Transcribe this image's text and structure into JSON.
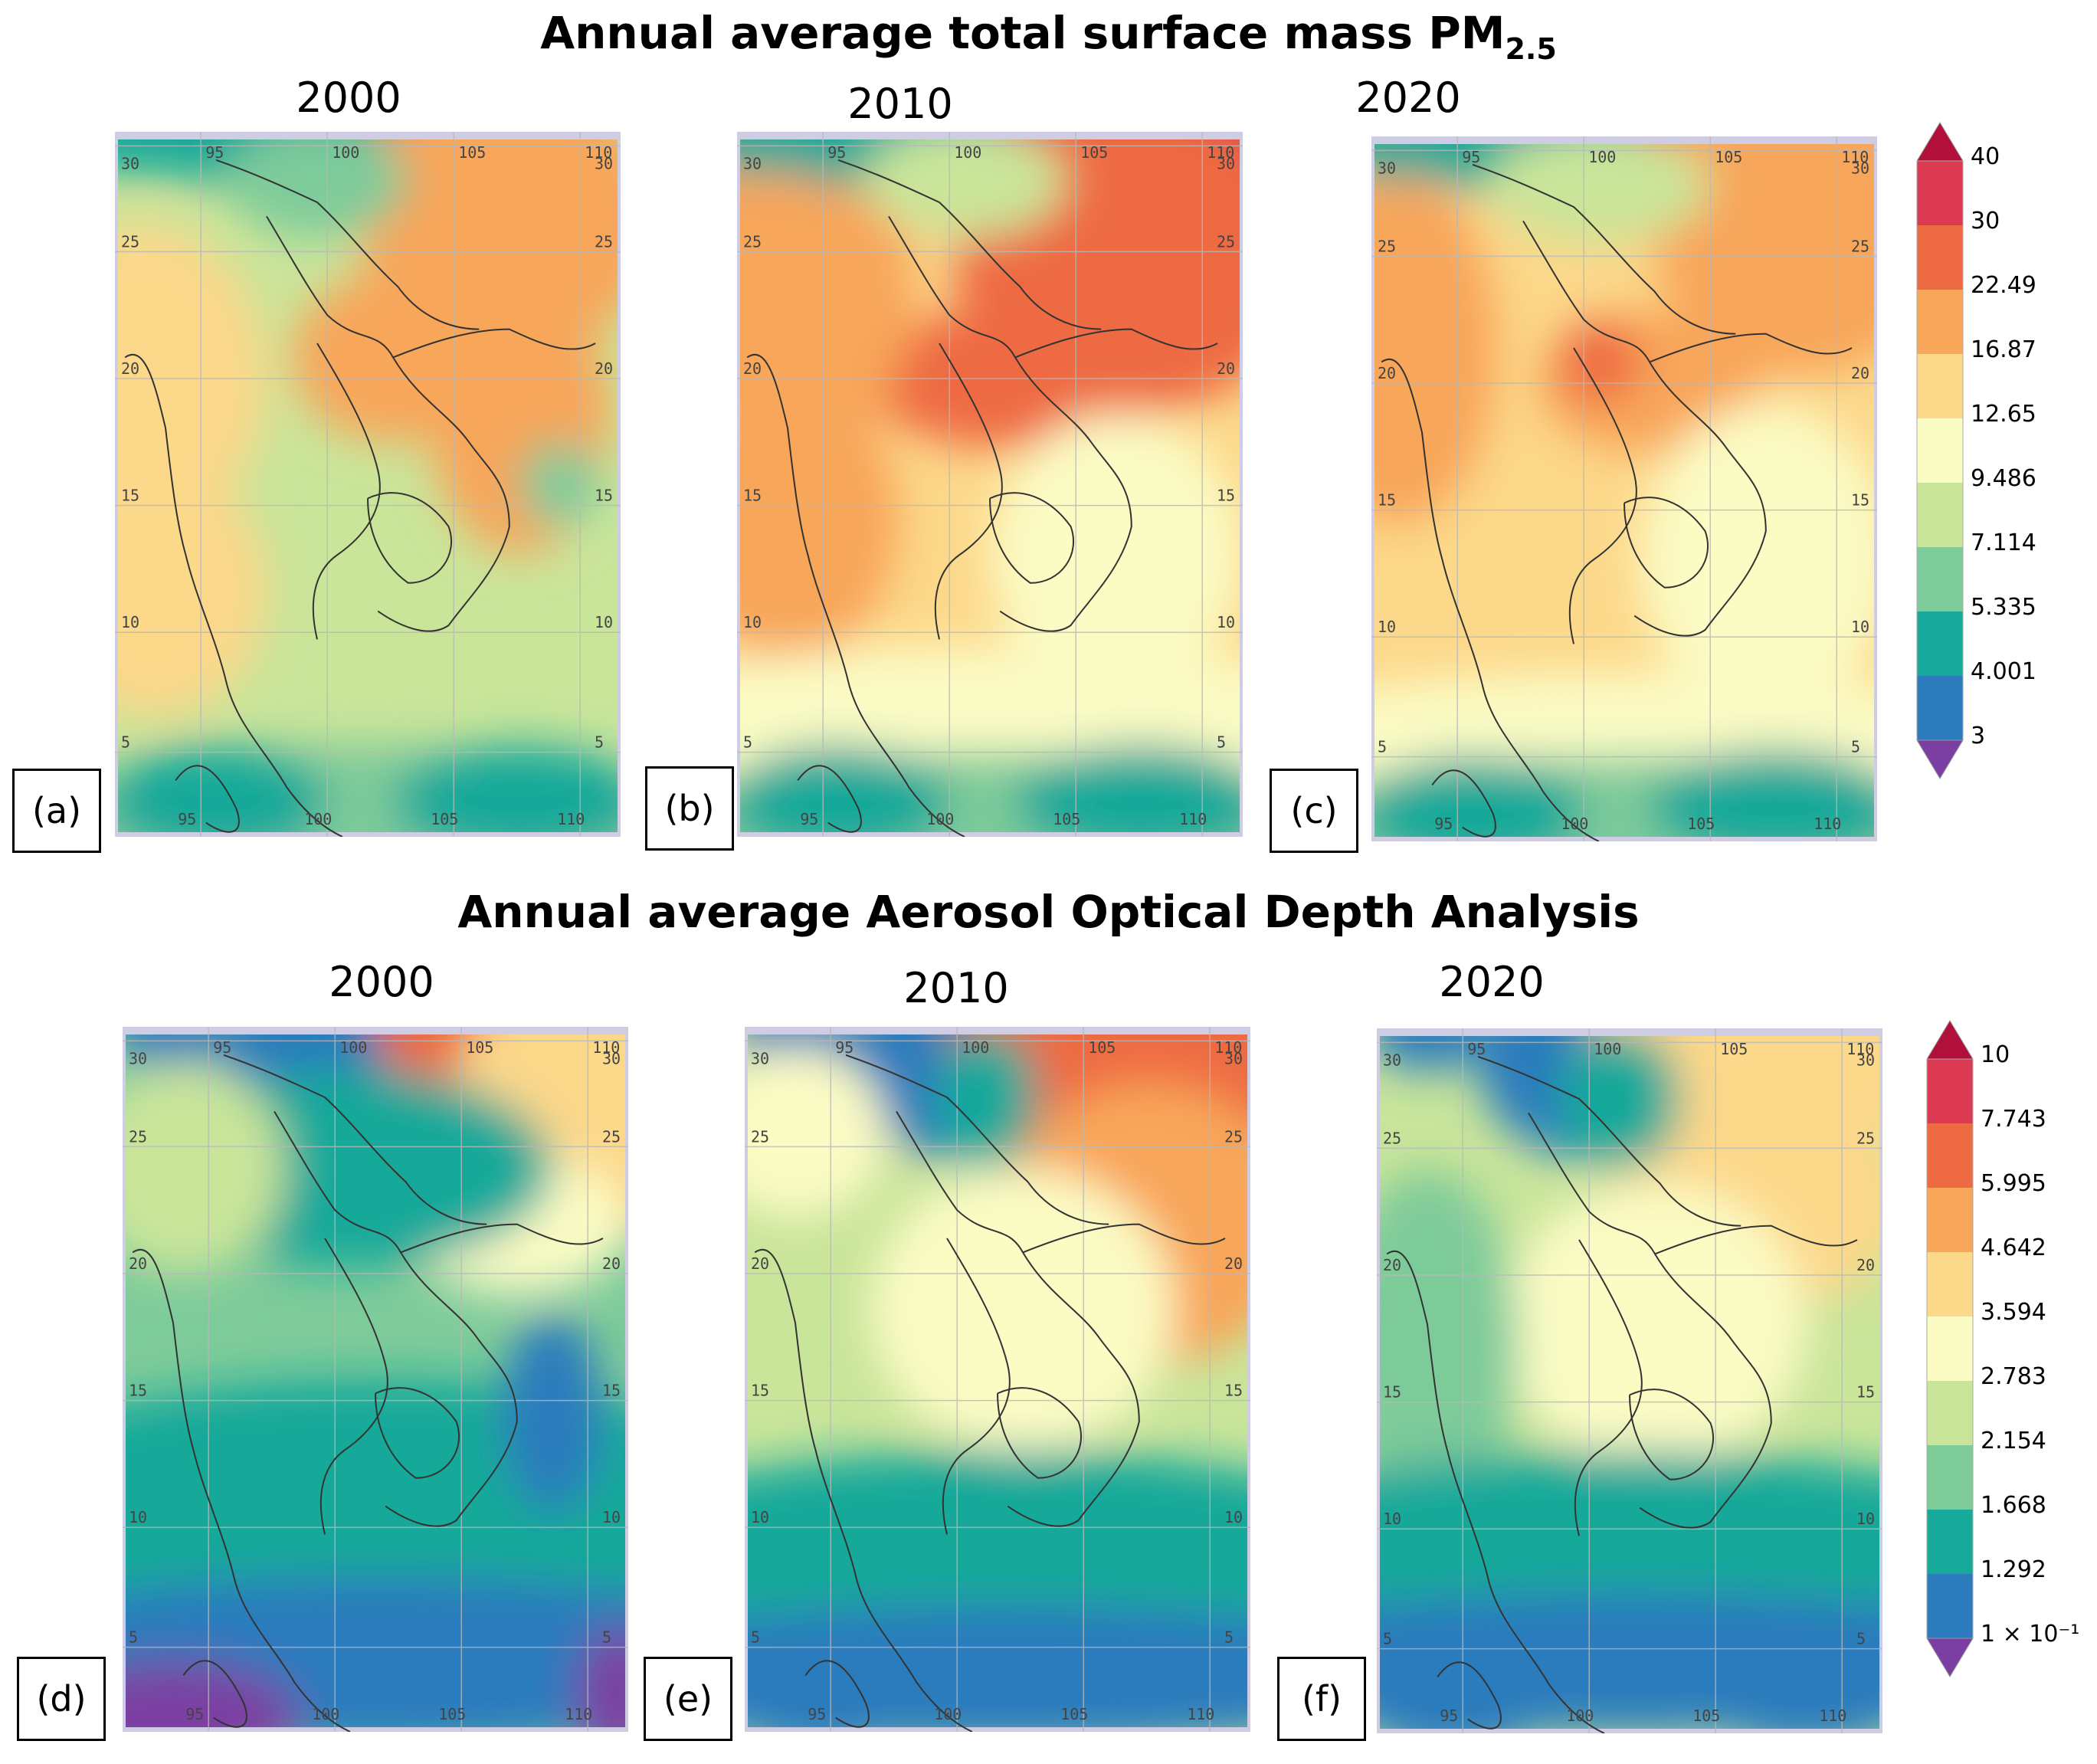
{
  "pm25": {
    "title": "Annual average total surface mass PM",
    "title_sub": "2.5",
    "colorbar_labels": [
      "40",
      "30",
      "22.49",
      "16.87",
      "12.65",
      "9.486",
      "7.114",
      "5.335",
      "4.001",
      "3"
    ],
    "colors": [
      "#7b3fa3",
      "#2b7bbd",
      "#17a99a",
      "#7ecb9a",
      "#c9e59a",
      "#fbfbc4",
      "#fcd88a",
      "#f8a65a",
      "#ee6a43",
      "#dc3a52",
      "#b0103a"
    ],
    "panels": [
      {
        "year": "2000",
        "label": "(a)",
        "bg": 4,
        "blobs": [
          [
            0.68,
            0.0,
            0.28,
            0.12,
            8
          ],
          [
            0.78,
            0.12,
            0.3,
            0.2,
            7
          ],
          [
            0.55,
            0.32,
            0.2,
            0.12,
            7
          ],
          [
            0.8,
            0.4,
            0.18,
            0.2,
            7
          ],
          [
            0.05,
            0.35,
            0.25,
            0.22,
            6
          ],
          [
            0.08,
            0.65,
            0.22,
            0.18,
            6
          ],
          [
            0.28,
            0.0,
            0.25,
            0.08,
            2
          ],
          [
            0.05,
            0.0,
            0.18,
            0.06,
            2
          ],
          [
            0.4,
            0.07,
            0.18,
            0.08,
            3
          ],
          [
            0.5,
            0.97,
            0.7,
            0.1,
            3
          ],
          [
            0.2,
            0.95,
            0.22,
            0.08,
            2
          ],
          [
            0.8,
            0.95,
            0.25,
            0.08,
            2
          ],
          [
            0.88,
            0.5,
            0.08,
            0.06,
            3
          ]
        ]
      },
      {
        "year": "2010",
        "label": "(b)",
        "bg": 6,
        "blobs": [
          [
            0.7,
            0.0,
            0.3,
            0.12,
            9
          ],
          [
            0.95,
            0.05,
            0.2,
            0.15,
            9
          ],
          [
            0.78,
            0.18,
            0.35,
            0.22,
            8
          ],
          [
            0.55,
            0.35,
            0.3,
            0.1,
            8
          ],
          [
            0.1,
            0.22,
            0.25,
            0.25,
            7
          ],
          [
            0.1,
            0.55,
            0.22,
            0.2,
            7
          ],
          [
            0.75,
            0.6,
            0.25,
            0.2,
            5
          ],
          [
            0.5,
            0.85,
            0.9,
            0.12,
            5
          ],
          [
            0.28,
            0.0,
            0.25,
            0.08,
            2
          ],
          [
            0.05,
            0.0,
            0.18,
            0.06,
            2
          ],
          [
            0.45,
            0.07,
            0.2,
            0.08,
            4
          ],
          [
            0.5,
            0.98,
            0.7,
            0.1,
            3
          ],
          [
            0.2,
            0.95,
            0.22,
            0.08,
            2
          ],
          [
            0.8,
            0.95,
            0.25,
            0.08,
            2
          ]
        ]
      },
      {
        "year": "2020",
        "label": "(c)",
        "bg": 6,
        "blobs": [
          [
            0.7,
            0.0,
            0.25,
            0.1,
            8
          ],
          [
            0.85,
            0.12,
            0.3,
            0.22,
            7
          ],
          [
            0.55,
            0.35,
            0.22,
            0.1,
            7
          ],
          [
            0.45,
            0.32,
            0.08,
            0.06,
            8
          ],
          [
            0.05,
            0.3,
            0.2,
            0.25,
            7
          ],
          [
            0.78,
            0.6,
            0.25,
            0.22,
            5
          ],
          [
            0.5,
            0.88,
            0.9,
            0.12,
            5
          ],
          [
            0.28,
            0.0,
            0.25,
            0.08,
            2
          ],
          [
            0.05,
            0.0,
            0.18,
            0.06,
            2
          ],
          [
            0.45,
            0.07,
            0.22,
            0.08,
            4
          ],
          [
            0.5,
            0.98,
            0.7,
            0.1,
            3
          ],
          [
            0.2,
            0.96,
            0.22,
            0.08,
            2
          ],
          [
            0.8,
            0.95,
            0.25,
            0.08,
            2
          ]
        ]
      }
    ]
  },
  "aod": {
    "title": "Annual average Aerosol Optical Depth Analysis",
    "colorbar_labels": [
      "10",
      "7.743",
      "5.995",
      "4.642",
      "3.594",
      "2.783",
      "2.154",
      "1.668",
      "1.292",
      "1 × 10⁻¹"
    ],
    "colors": [
      "#7b3fa3",
      "#2b7bbd",
      "#17a99a",
      "#7ecb9a",
      "#c9e59a",
      "#fbfbc4",
      "#fcd88a",
      "#f8a65a",
      "#ee6a43",
      "#dc3a52",
      "#b0103a"
    ],
    "panels": [
      {
        "year": "2000",
        "label": "(d)",
        "bg": 3,
        "blobs": [
          [
            0.45,
            0.05,
            0.25,
            0.14,
            1
          ],
          [
            0.1,
            0.0,
            0.12,
            0.06,
            1
          ],
          [
            0.7,
            0.0,
            0.2,
            0.1,
            8
          ],
          [
            0.9,
            0.12,
            0.25,
            0.2,
            6
          ],
          [
            0.78,
            0.28,
            0.22,
            0.1,
            5
          ],
          [
            0.45,
            0.2,
            0.4,
            0.14,
            2
          ],
          [
            0.5,
            0.72,
            0.9,
            0.22,
            2
          ],
          [
            0.5,
            0.9,
            0.9,
            0.12,
            1
          ],
          [
            0.85,
            0.55,
            0.1,
            0.14,
            1
          ],
          [
            0.1,
            0.98,
            0.25,
            0.08,
            0
          ],
          [
            0.98,
            0.95,
            0.08,
            0.1,
            0
          ],
          [
            0.12,
            0.2,
            0.2,
            0.15,
            4
          ]
        ]
      },
      {
        "year": "2010",
        "label": "(e)",
        "bg": 4,
        "blobs": [
          [
            0.45,
            0.05,
            0.25,
            0.14,
            1
          ],
          [
            0.1,
            0.0,
            0.12,
            0.06,
            1
          ],
          [
            0.75,
            0.05,
            0.35,
            0.2,
            8
          ],
          [
            0.8,
            0.28,
            0.3,
            0.2,
            7
          ],
          [
            0.55,
            0.4,
            0.3,
            0.2,
            5
          ],
          [
            0.5,
            0.78,
            0.9,
            0.18,
            2
          ],
          [
            0.5,
            0.92,
            0.9,
            0.1,
            1
          ],
          [
            0.15,
            0.95,
            0.2,
            0.08,
            1
          ],
          [
            0.48,
            0.1,
            0.1,
            0.1,
            2
          ],
          [
            0.1,
            0.15,
            0.18,
            0.12,
            5
          ]
        ]
      },
      {
        "year": "2020",
        "label": "(f)",
        "bg": 4,
        "blobs": [
          [
            0.45,
            0.05,
            0.25,
            0.14,
            1
          ],
          [
            0.1,
            0.0,
            0.12,
            0.06,
            1
          ],
          [
            0.75,
            0.05,
            0.35,
            0.16,
            6
          ],
          [
            0.75,
            0.25,
            0.3,
            0.15,
            6
          ],
          [
            0.55,
            0.42,
            0.3,
            0.2,
            5
          ],
          [
            0.1,
            0.45,
            0.18,
            0.25,
            3
          ],
          [
            0.5,
            0.76,
            0.9,
            0.16,
            2
          ],
          [
            0.5,
            0.9,
            0.9,
            0.1,
            1
          ],
          [
            0.85,
            0.92,
            0.25,
            0.1,
            1
          ],
          [
            0.15,
            0.95,
            0.2,
            0.08,
            1
          ],
          [
            0.48,
            0.1,
            0.12,
            0.1,
            2
          ]
        ]
      }
    ]
  },
  "grid_labels": {
    "lon": [
      "95",
      "100",
      "105",
      "110"
    ],
    "lat": [
      "30",
      "25",
      "20",
      "15",
      "10",
      "5"
    ]
  }
}
